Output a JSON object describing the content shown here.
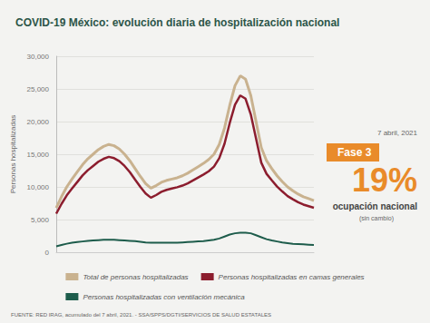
{
  "chart_data": {
    "type": "line",
    "title": "COVID-19 México: evolución diaria de hospitalización nacional",
    "y_label": "Personas hospitalizadas",
    "categories": [
      null,
      null,
      null,
      null,
      null,
      null,
      null,
      null,
      null,
      null,
      null,
      null,
      null,
      null,
      null,
      null,
      null,
      null,
      null,
      null,
      null,
      null,
      null,
      null,
      null,
      null,
      null,
      null,
      null,
      null,
      null,
      null,
      null,
      null,
      null,
      null,
      null,
      null,
      null,
      null,
      null,
      null,
      null,
      null,
      null,
      null,
      null,
      null,
      null,
      null
    ],
    "series": [
      {
        "name": "Total de personas hospitalizadas",
        "color": "#c9b28f",
        "values": [
          6800,
          8500,
          10000,
          11200,
          12300,
          13400,
          14300,
          15000,
          15700,
          16200,
          16500,
          16300,
          15800,
          15000,
          14000,
          12800,
          11600,
          10500,
          9800,
          10200,
          10700,
          11000,
          11200,
          11400,
          11700,
          12100,
          12600,
          13100,
          13600,
          14200,
          15000,
          16500,
          19000,
          22500,
          25500,
          27000,
          26500,
          24000,
          20000,
          16000,
          14000,
          12800,
          11700,
          10800,
          10000,
          9400,
          8900,
          8500,
          8200,
          7900
        ]
      },
      {
        "name": "Personas hospitalizadas en camas generales",
        "color": "#8c1d2e",
        "values": [
          5900,
          7400,
          8700,
          9750,
          10750,
          11750,
          12550,
          13200,
          13850,
          14300,
          14600,
          14400,
          13950,
          13200,
          12250,
          11100,
          10000,
          9000,
          8350,
          8750,
          9250,
          9550,
          9750,
          9950,
          10200,
          10550,
          11000,
          11450,
          11900,
          12400,
          13100,
          14400,
          16600,
          19800,
          22600,
          24000,
          23500,
          21100,
          17400,
          13700,
          12000,
          11000,
          10050,
          9300,
          8600,
          8100,
          7650,
          7300,
          7050,
          6800
        ]
      },
      {
        "name": "Personas hospitalizadas con ventilación mecánica",
        "color": "#1d5c4b",
        "values": [
          900,
          1100,
          1300,
          1450,
          1550,
          1650,
          1750,
          1800,
          1850,
          1900,
          1900,
          1900,
          1850,
          1800,
          1750,
          1700,
          1600,
          1500,
          1450,
          1450,
          1450,
          1450,
          1450,
          1450,
          1500,
          1550,
          1600,
          1650,
          1700,
          1800,
          1900,
          2100,
          2400,
          2700,
          2900,
          3000,
          3000,
          2900,
          2600,
          2300,
          2000,
          1800,
          1650,
          1500,
          1400,
          1300,
          1250,
          1200,
          1150,
          1100
        ]
      }
    ],
    "ylim": [
      0,
      30000
    ],
    "yticks": [
      0,
      {
        "value": 5000,
        "label": "5,000"
      },
      {
        "value": 10000,
        "label": "10,000"
      },
      {
        "value": 15000,
        "label": "15,000"
      },
      {
        "value": 20000,
        "label": "20,000"
      },
      {
        "value": 25000,
        "label": "25,000"
      },
      {
        "value": 30000,
        "label": "30,000"
      }
    ],
    "grid": true,
    "legend": "bottom",
    "tick_labels": "y",
    "annotations": {
      "date": "7 abril, 2021",
      "phase": "Fase 3",
      "occupancy": "19%",
      "occupancy_label": "ocupación nacional",
      "occupancy_note": "(sin cambio)"
    },
    "source": "FUENTE: RED IRAG, acumulado del 7 abril, 2021. - SSA/SPPS/DGTI/SERVICIOS DE SALUD ESTATALES"
  }
}
